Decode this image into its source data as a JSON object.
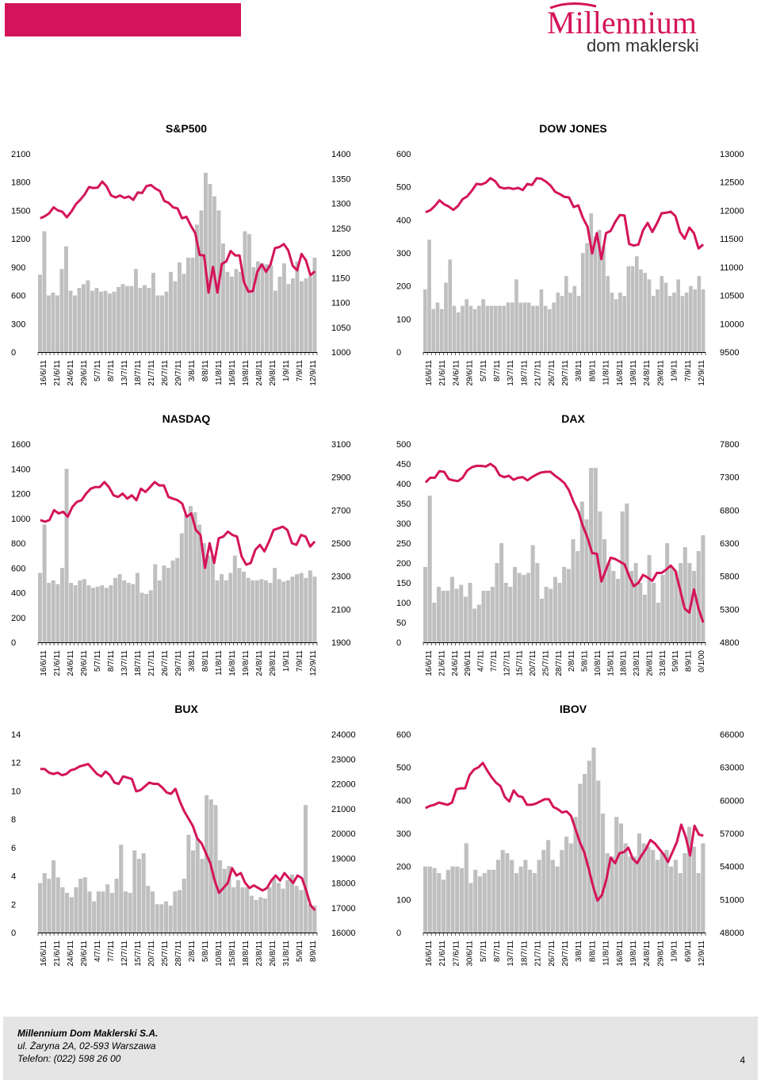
{
  "header": {
    "brand_name": "Millennium",
    "brand_sub": "dom maklerski",
    "accent_color": "#d4145a"
  },
  "footer": {
    "company": "Millennium Dom Maklerski S.A.",
    "address": "ul. Żaryna 2A, 02-593 Warszawa",
    "phone": "Telefon: (022) 598 26 00",
    "page": "4"
  },
  "chart_data": [
    {
      "id": "sp500",
      "type": "bar+line",
      "title": "S&P500",
      "left_axis": {
        "min": 0,
        "max": 2100,
        "ticks": [
          0,
          300,
          600,
          900,
          1200,
          1500,
          1800,
          2100
        ]
      },
      "right_axis": {
        "min": 1000,
        "max": 1400,
        "ticks": [
          1000,
          1050,
          1100,
          1150,
          1200,
          1250,
          1300,
          1350,
          1400
        ]
      },
      "x_labels": [
        "16/6/11",
        "21/6/11",
        "24/6/11",
        "29/6/11",
        "5/7/11",
        "8/7/11",
        "13/7/11",
        "18/7/11",
        "21/7/11",
        "26/7/11",
        "29/7/11",
        "3/8/11",
        "8/8/11",
        "11/8/11",
        "16/8/11",
        "19/8/11",
        "24/8/11",
        "29/8/11",
        "1/9/11",
        "7/9/11",
        "12/9/11"
      ],
      "bars": [
        820,
        1280,
        600,
        630,
        600,
        880,
        1120,
        650,
        600,
        680,
        720,
        760,
        650,
        680,
        640,
        650,
        620,
        640,
        690,
        720,
        700,
        700,
        880,
        680,
        710,
        680,
        840,
        600,
        600,
        640,
        850,
        750,
        950,
        830,
        1000,
        1000,
        1350,
        1500,
        1900,
        1780,
        1650,
        1500,
        1150,
        850,
        800,
        880,
        850,
        1280,
        1250,
        900,
        960,
        940,
        930,
        920,
        650,
        800,
        940,
        720,
        780,
        960,
        750,
        780,
        800,
        1000
      ],
      "line": [
        1270,
        1274,
        1280,
        1292,
        1286,
        1283,
        1272,
        1283,
        1298,
        1307,
        1318,
        1333,
        1331,
        1332,
        1344,
        1334,
        1316,
        1312,
        1316,
        1311,
        1314,
        1307,
        1322,
        1321,
        1335,
        1337,
        1330,
        1325,
        1305,
        1301,
        1292,
        1290,
        1270,
        1273,
        1255,
        1240,
        1196,
        1195,
        1120,
        1172,
        1120,
        1178,
        1183,
        1204,
        1195,
        1195,
        1141,
        1122,
        1123,
        1162,
        1177,
        1162,
        1177,
        1210,
        1212,
        1218,
        1205,
        1174,
        1165,
        1198,
        1185,
        1155,
        1163
      ]
    },
    {
      "id": "dow",
      "type": "bar+line",
      "title": "DOW JONES",
      "left_axis": {
        "min": 0,
        "max": 600,
        "ticks": [
          0,
          100,
          200,
          300,
          400,
          500,
          600
        ]
      },
      "right_axis": {
        "min": 9500,
        "max": 13000,
        "ticks": [
          9500,
          10000,
          10500,
          11000,
          11500,
          12000,
          12500,
          13000
        ]
      },
      "x_labels": [
        "16/6/11",
        "21/6/11",
        "24/6/11",
        "29/6/11",
        "5/7/11",
        "8/7/11",
        "13/7/11",
        "18/7/11",
        "21/7/11",
        "26/7/11",
        "29/7/11",
        "3/8/11",
        "8/8/11",
        "11/8/11",
        "16/8/11",
        "19/8/11",
        "24/8/11",
        "29/8/11",
        "1/9/11",
        "7/9/11",
        "12/9/11"
      ],
      "bars": [
        190,
        340,
        130,
        150,
        130,
        210,
        280,
        140,
        120,
        140,
        160,
        140,
        130,
        140,
        160,
        140,
        140,
        140,
        140,
        140,
        150,
        150,
        220,
        150,
        150,
        150,
        140,
        140,
        190,
        140,
        130,
        150,
        180,
        170,
        230,
        180,
        200,
        170,
        300,
        330,
        420,
        350,
        370,
        320,
        230,
        180,
        160,
        180,
        170,
        260,
        260,
        290,
        250,
        240,
        220,
        170,
        190,
        230,
        210,
        170,
        180,
        220,
        170,
        180,
        200,
        190,
        230,
        190
      ],
      "line": [
        11970,
        12005,
        12080,
        12180,
        12110,
        12070,
        12010,
        12080,
        12200,
        12250,
        12350,
        12470,
        12460,
        12490,
        12570,
        12520,
        12410,
        12390,
        12400,
        12380,
        12400,
        12360,
        12470,
        12450,
        12570,
        12560,
        12510,
        12440,
        12330,
        12290,
        12240,
        12230,
        12060,
        12090,
        11870,
        11710,
        11240,
        11600,
        11140,
        11600,
        11640,
        11800,
        11920,
        11910,
        11410,
        11380,
        11400,
        11650,
        11780,
        11620,
        11770,
        11950,
        11960,
        11980,
        11900,
        11620,
        11500,
        11700,
        11600,
        11330,
        11400
      ]
    },
    {
      "id": "nasdaq",
      "type": "bar+line",
      "title": "NASDAQ",
      "left_axis": {
        "min": 0,
        "max": 1600,
        "ticks": [
          0,
          200,
          400,
          600,
          800,
          1000,
          1200,
          1400,
          1600
        ]
      },
      "right_axis": {
        "min": 1900,
        "max": 3100,
        "ticks": [
          1900,
          2100,
          2300,
          2500,
          2700,
          2900,
          3100
        ]
      },
      "x_labels": [
        "16/6/11",
        "21/6/11",
        "24/6/11",
        "29/6/11",
        "5/7/11",
        "8/7/11",
        "13/7/11",
        "18/7/11",
        "21/7/11",
        "26/7/11",
        "29/7/11",
        "3/8/11",
        "8/8/11",
        "11/8/11",
        "16/8/11",
        "19/8/11",
        "24/8/11",
        "29/8/11",
        "1/9/11",
        "7/9/11",
        "12/9/11"
      ],
      "bars": [
        560,
        950,
        480,
        500,
        470,
        600,
        1400,
        480,
        460,
        500,
        510,
        460,
        440,
        450,
        460,
        440,
        460,
        520,
        550,
        500,
        480,
        470,
        560,
        400,
        390,
        420,
        630,
        500,
        620,
        600,
        660,
        680,
        880,
        1030,
        1100,
        1050,
        950,
        800,
        700,
        700,
        500,
        550,
        500,
        560,
        700,
        600,
        570,
        520,
        500,
        500,
        510,
        500,
        480,
        600,
        510,
        490,
        500,
        530,
        550,
        560,
        520,
        580,
        530
      ],
      "line": [
        2640,
        2630,
        2640,
        2700,
        2680,
        2690,
        2660,
        2720,
        2750,
        2760,
        2800,
        2830,
        2840,
        2840,
        2870,
        2840,
        2790,
        2780,
        2800,
        2770,
        2790,
        2760,
        2830,
        2810,
        2840,
        2870,
        2850,
        2850,
        2780,
        2770,
        2760,
        2740,
        2660,
        2680,
        2580,
        2550,
        2350,
        2500,
        2380,
        2530,
        2540,
        2570,
        2550,
        2540,
        2420,
        2370,
        2380,
        2460,
        2490,
        2450,
        2510,
        2580,
        2590,
        2600,
        2580,
        2500,
        2490,
        2550,
        2540,
        2480,
        2510
      ]
    },
    {
      "id": "dax",
      "type": "bar+line",
      "title": "DAX",
      "left_axis": {
        "min": 0,
        "max": 500,
        "ticks": [
          0,
          50,
          100,
          150,
          200,
          250,
          300,
          350,
          400,
          450,
          500
        ]
      },
      "right_axis": {
        "min": 4800,
        "max": 7800,
        "ticks": [
          4800,
          5300,
          5800,
          6300,
          6800,
          7300,
          7800
        ]
      },
      "x_labels": [
        "16/6/11",
        "21/6/11",
        "24/6/11",
        "29/6/11",
        "4/7/11",
        "7/7/11",
        "12/7/11",
        "15/7/11",
        "20/7/11",
        "25/7/11",
        "28/7/11",
        "2/8/11",
        "5/8/11",
        "10/8/11",
        "15/8/11",
        "18/8/11",
        "23/8/11",
        "26/8/11",
        "31/8/11",
        "5/9/11",
        "8/9/11",
        "0/1/00"
      ],
      "bars": [
        190,
        370,
        100,
        140,
        130,
        130,
        165,
        135,
        145,
        115,
        150,
        85,
        95,
        130,
        130,
        140,
        200,
        250,
        150,
        140,
        190,
        175,
        170,
        175,
        245,
        200,
        110,
        140,
        135,
        165,
        150,
        190,
        185,
        260,
        230,
        355,
        310,
        440,
        440,
        330,
        260,
        200,
        180,
        160,
        330,
        350,
        180,
        200,
        150,
        120,
        220,
        150,
        100,
        170,
        250,
        190,
        180,
        200,
        240,
        200,
        180,
        230,
        270
      ],
      "line": [
        7220,
        7290,
        7290,
        7390,
        7380,
        7270,
        7250,
        7240,
        7290,
        7400,
        7450,
        7470,
        7470,
        7460,
        7500,
        7450,
        7330,
        7300,
        7320,
        7260,
        7290,
        7300,
        7250,
        7300,
        7340,
        7370,
        7380,
        7380,
        7320,
        7270,
        7210,
        7100,
        6920,
        6780,
        6560,
        6380,
        6150,
        6140,
        5720,
        5900,
        6080,
        6060,
        6020,
        5980,
        5800,
        5650,
        5700,
        5820,
        5780,
        5730,
        5850,
        5850,
        5900,
        5960,
        5880,
        5600,
        5310,
        5250,
        5600,
        5310,
        5100
      ]
    },
    {
      "id": "bux",
      "type": "bar+line",
      "title": "BUX",
      "left_axis": {
        "min": 0,
        "max": 14,
        "ticks": [
          0,
          2,
          4,
          6,
          8,
          10,
          12,
          14
        ]
      },
      "right_axis": {
        "min": 16000,
        "max": 24000,
        "ticks": [
          16000,
          17000,
          18000,
          19000,
          20000,
          21000,
          22000,
          23000,
          24000
        ]
      },
      "x_labels": [
        "16/6/11",
        "21/6/11",
        "24/6/11",
        "29/6/11",
        "4/7/11",
        "7/7/11",
        "12/7/11",
        "15/7/11",
        "20/7/11",
        "25/7/11",
        "28/7/11",
        "2/8/11",
        "5/8/11",
        "10/8/11",
        "15/8/11",
        "18/8/11",
        "23/8/11",
        "26/8/11",
        "31/8/11",
        "5/9/11",
        "8/9/11"
      ],
      "bars": [
        3.5,
        4.2,
        3.8,
        5.1,
        3.9,
        3.2,
        2.8,
        2.5,
        3.2,
        3.8,
        3.9,
        2.9,
        2.2,
        2.9,
        2.9,
        3.4,
        2.8,
        3.8,
        6.2,
        2.9,
        2.8,
        5.8,
        5.2,
        5.6,
        3.3,
        2.9,
        2.0,
        2.0,
        2.2,
        1.9,
        2.9,
        3.0,
        3.8,
        6.9,
        5.8,
        6.6,
        5.2,
        9.7,
        9.4,
        9.0,
        5.1,
        4.5,
        4.7,
        3.2,
        3.7,
        3.2,
        3.2,
        2.6,
        2.3,
        2.5,
        2.4,
        3.2,
        3.8,
        3.5,
        3.1,
        3.7,
        4.1,
        3.3,
        3.0,
        9.0,
        2.0,
        1.9
      ],
      "line": [
        22600,
        22600,
        22450,
        22400,
        22450,
        22350,
        22400,
        22550,
        22600,
        22700,
        22750,
        22800,
        22600,
        22400,
        22300,
        22500,
        22350,
        22050,
        22000,
        22300,
        22250,
        22200,
        21700,
        21750,
        21900,
        22050,
        22000,
        22000,
        21850,
        21650,
        21600,
        21800,
        21300,
        20900,
        20600,
        20300,
        19800,
        19600,
        19200,
        18800,
        18100,
        17600,
        17800,
        18000,
        18600,
        18300,
        18400,
        18000,
        17800,
        17900,
        17800,
        17700,
        17800,
        18100,
        18300,
        18100,
        18400,
        18200,
        18000,
        18300,
        18200,
        17700,
        17100,
        16900
      ]
    },
    {
      "id": "ibov",
      "type": "bar+line",
      "title": "IBOV",
      "left_axis": {
        "min": 0,
        "max": 600,
        "ticks": [
          0,
          100,
          200,
          300,
          400,
          500,
          600
        ]
      },
      "right_axis": {
        "min": 48000,
        "max": 66000,
        "ticks": [
          48000,
          51000,
          54000,
          57000,
          60000,
          63000,
          66000
        ]
      },
      "x_labels": [
        "16/6/11",
        "21/6/11",
        "27/6/11",
        "30/6/11",
        "5/7/11",
        "8/7/11",
        "13/7/11",
        "18/7/11",
        "21/7/11",
        "26/7/11",
        "29/7/11",
        "3/8/11",
        "8/8/11",
        "11/8/11",
        "16/8/11",
        "19/8/11",
        "24/8/11",
        "29/8/11",
        "1/9/11",
        "6/9/11",
        "12/9/11"
      ],
      "bars": [
        200,
        200,
        195,
        180,
        160,
        190,
        200,
        200,
        195,
        270,
        150,
        190,
        170,
        180,
        190,
        190,
        220,
        250,
        240,
        220,
        180,
        200,
        220,
        190,
        180,
        220,
        250,
        280,
        220,
        200,
        250,
        290,
        270,
        350,
        450,
        480,
        520,
        560,
        460,
        360,
        240,
        230,
        350,
        330,
        270,
        230,
        230,
        300,
        270,
        260,
        250,
        220,
        240,
        250,
        200,
        220,
        180,
        240,
        320,
        260,
        180,
        270
      ],
      "line": [
        59300,
        59500,
        59600,
        59800,
        59700,
        59600,
        59800,
        61000,
        61100,
        61100,
        62300,
        62800,
        63000,
        63400,
        62700,
        62100,
        61600,
        61300,
        60300,
        59900,
        60900,
        60400,
        60300,
        59600,
        59600,
        59700,
        59900,
        60100,
        60100,
        59400,
        59200,
        58900,
        59000,
        58600,
        57400,
        56200,
        55300,
        53800,
        52200,
        50900,
        51400,
        52800,
        54800,
        54300,
        55200,
        55300,
        55700,
        54700,
        54300,
        55000,
        55600,
        56400,
        56100,
        55600,
        55100,
        54400,
        55300,
        56200,
        57800,
        56700,
        55000,
        57700,
        56900,
        56800
      ]
    }
  ]
}
